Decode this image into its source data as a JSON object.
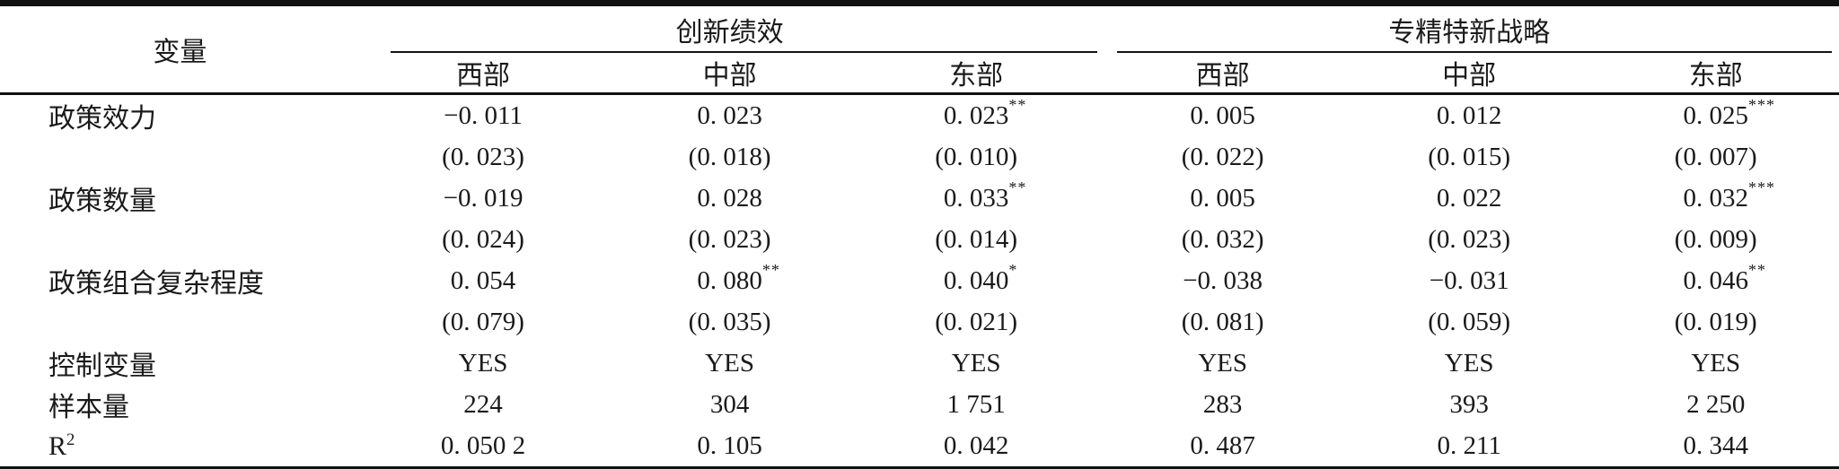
{
  "table": {
    "header": {
      "variable": "变量",
      "group1": "创新绩效",
      "group2": "专精特新战略",
      "subcols": [
        "西部",
        "中部",
        "东部",
        "西部",
        "中部",
        "东部"
      ]
    },
    "rows": [
      {
        "label": "政策效力",
        "cells": [
          {
            "t": "−0. 011"
          },
          {
            "t": "0. 023"
          },
          {
            "t": "0. 023",
            "s": "**"
          },
          {
            "t": "0. 005"
          },
          {
            "t": "0. 012"
          },
          {
            "t": "0. 025",
            "s": "***"
          }
        ]
      },
      {
        "label": "",
        "cells": [
          {
            "t": "(0. 023)"
          },
          {
            "t": "(0. 018)"
          },
          {
            "t": "(0. 010)"
          },
          {
            "t": "(0. 022)"
          },
          {
            "t": "(0. 015)"
          },
          {
            "t": "(0. 007)"
          }
        ]
      },
      {
        "label": "政策数量",
        "cells": [
          {
            "t": "−0. 019"
          },
          {
            "t": "0. 028"
          },
          {
            "t": "0. 033",
            "s": "**"
          },
          {
            "t": "0. 005"
          },
          {
            "t": "0. 022"
          },
          {
            "t": "0. 032",
            "s": "***"
          }
        ]
      },
      {
        "label": "",
        "cells": [
          {
            "t": "(0. 024)"
          },
          {
            "t": "(0. 023)"
          },
          {
            "t": "(0. 014)"
          },
          {
            "t": "(0. 032)"
          },
          {
            "t": "(0. 023)"
          },
          {
            "t": "(0. 009)"
          }
        ]
      },
      {
        "label": "政策组合复杂程度",
        "cells": [
          {
            "t": "0. 054"
          },
          {
            "t": "0. 080",
            "s": "**"
          },
          {
            "t": "0. 040",
            "s": "*"
          },
          {
            "t": "−0. 038"
          },
          {
            "t": "−0. 031"
          },
          {
            "t": "0. 046",
            "s": "**"
          }
        ]
      },
      {
        "label": "",
        "cells": [
          {
            "t": "(0. 079)"
          },
          {
            "t": "(0. 035)"
          },
          {
            "t": "(0. 021)"
          },
          {
            "t": "(0. 081)"
          },
          {
            "t": "(0. 059)"
          },
          {
            "t": "(0. 019)"
          }
        ]
      },
      {
        "label": "控制变量",
        "cells": [
          {
            "t": "YES"
          },
          {
            "t": "YES"
          },
          {
            "t": "YES"
          },
          {
            "t": "YES"
          },
          {
            "t": "YES"
          },
          {
            "t": "YES"
          }
        ]
      },
      {
        "label": "样本量",
        "cells": [
          {
            "t": "224"
          },
          {
            "t": "304"
          },
          {
            "t": "1 751"
          },
          {
            "t": "283"
          },
          {
            "t": "393"
          },
          {
            "t": "2 250"
          }
        ]
      },
      {
        "label": "R",
        "label_sup": "2",
        "cells": [
          {
            "t": "0. 050 2"
          },
          {
            "t": "0. 105"
          },
          {
            "t": "0. 042"
          },
          {
            "t": "0. 487"
          },
          {
            "t": "0. 211"
          },
          {
            "t": "0. 344"
          }
        ]
      }
    ]
  },
  "colors": {
    "text": "#1a1a1a",
    "rule": "#121212",
    "background": "#ffffff"
  }
}
